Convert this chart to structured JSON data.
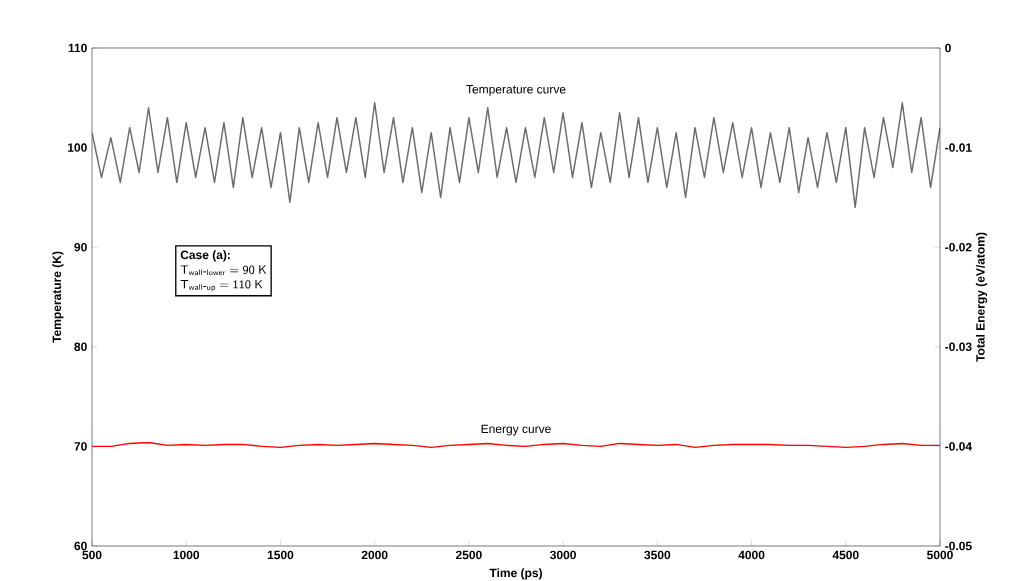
{
  "chart_data": {
    "type": "line",
    "xlabel": "Time (ps)",
    "ylabel": "Temperature (K)",
    "y2label": "Total Energy (eV/atom)",
    "xlim": [
      500,
      5000
    ],
    "xticks": [
      500,
      1000,
      1500,
      2000,
      2500,
      3000,
      3500,
      4000,
      4500,
      5000
    ],
    "ylim": [
      60,
      110
    ],
    "yticks": [
      60,
      70,
      80,
      90,
      100,
      110
    ],
    "y2lim": [
      -0.05,
      0
    ],
    "y2ticks": [
      -0.05,
      -0.04,
      -0.03,
      -0.02,
      -0.01,
      0
    ],
    "annotations": [
      "**Case (a):**",
      "\\mathsf{T}_{\\mathsf{wall\\mbox{-}lower}} = \\mathsf{90\\ K}",
      "\\mathsf{T}_{\\mathsf{wall\\mbox{-}up}} = \\mathsf{110\\ K}"
    ],
    "series": [
      {
        "name": "Temperature curve",
        "color": "#6b6b6b",
        "x": [
          500,
          550,
          600,
          650,
          700,
          750,
          800,
          850,
          900,
          950,
          1000,
          1050,
          1100,
          1150,
          1200,
          1250,
          1300,
          1350,
          1400,
          1450,
          1500,
          1550,
          1600,
          1650,
          1700,
          1750,
          1800,
          1850,
          1900,
          1950,
          2000,
          2050,
          2100,
          2150,
          2200,
          2250,
          2300,
          2350,
          2400,
          2450,
          2500,
          2550,
          2600,
          2650,
          2700,
          2750,
          2800,
          2850,
          2900,
          2950,
          3000,
          3050,
          3100,
          3150,
          3200,
          3250,
          3300,
          3350,
          3400,
          3450,
          3500,
          3550,
          3600,
          3650,
          3700,
          3750,
          3800,
          3850,
          3900,
          3950,
          4000,
          4050,
          4100,
          4150,
          4200,
          4250,
          4300,
          4350,
          4400,
          4450,
          4500,
          4550,
          4600,
          4650,
          4700,
          4750,
          4800,
          4850,
          4900,
          4950,
          5000
        ],
        "values": [
          101.5,
          97,
          101,
          96.5,
          102,
          97.5,
          104,
          97.5,
          103,
          96.5,
          102.5,
          97,
          102,
          96.5,
          102.5,
          96,
          103,
          97,
          102,
          96,
          101.5,
          94.5,
          102,
          96.5,
          102.5,
          97,
          103,
          97.5,
          103,
          97,
          104.5,
          97.5,
          103,
          96.5,
          102,
          95.5,
          101.5,
          95,
          102,
          96.5,
          103,
          97.5,
          104,
          97,
          102,
          96.5,
          102,
          97,
          103,
          97.5,
          103.5,
          97,
          102.5,
          96,
          101.5,
          96.5,
          103.5,
          97,
          103,
          96.5,
          102,
          96,
          101.5,
          95,
          102,
          97,
          103,
          97.5,
          102.5,
          97,
          102,
          96,
          101.5,
          96.5,
          102,
          95.5,
          101,
          96,
          101.5,
          96.5,
          102,
          94,
          102,
          97,
          103,
          98,
          104.5,
          97.5,
          103,
          96,
          102
        ]
      },
      {
        "name": "Energy curve",
        "color": "#ff0000",
        "axis": "y2",
        "x": [
          500,
          600,
          700,
          800,
          900,
          1000,
          1100,
          1200,
          1300,
          1400,
          1500,
          1600,
          1700,
          1800,
          1900,
          2000,
          2100,
          2200,
          2300,
          2400,
          2500,
          2600,
          2700,
          2800,
          2900,
          3000,
          3100,
          3200,
          3300,
          3400,
          3500,
          3600,
          3700,
          3800,
          3900,
          4000,
          4100,
          4200,
          4300,
          4400,
          4500,
          4600,
          4700,
          4800,
          4900,
          5000
        ],
        "values": [
          -0.04,
          -0.04,
          -0.0397,
          -0.0396,
          -0.0399,
          -0.0398,
          -0.0399,
          -0.0398,
          -0.0398,
          -0.04,
          -0.0401,
          -0.0399,
          -0.0398,
          -0.0399,
          -0.0398,
          -0.0397,
          -0.0398,
          -0.0399,
          -0.0401,
          -0.0399,
          -0.0398,
          -0.0397,
          -0.0399,
          -0.04,
          -0.0398,
          -0.0397,
          -0.0399,
          -0.04,
          -0.0397,
          -0.0398,
          -0.0399,
          -0.0398,
          -0.0401,
          -0.0399,
          -0.0398,
          -0.0398,
          -0.0398,
          -0.0399,
          -0.0399,
          -0.04,
          -0.0401,
          -0.04,
          -0.0398,
          -0.0397,
          -0.0399,
          -0.0399
        ]
      }
    ]
  }
}
